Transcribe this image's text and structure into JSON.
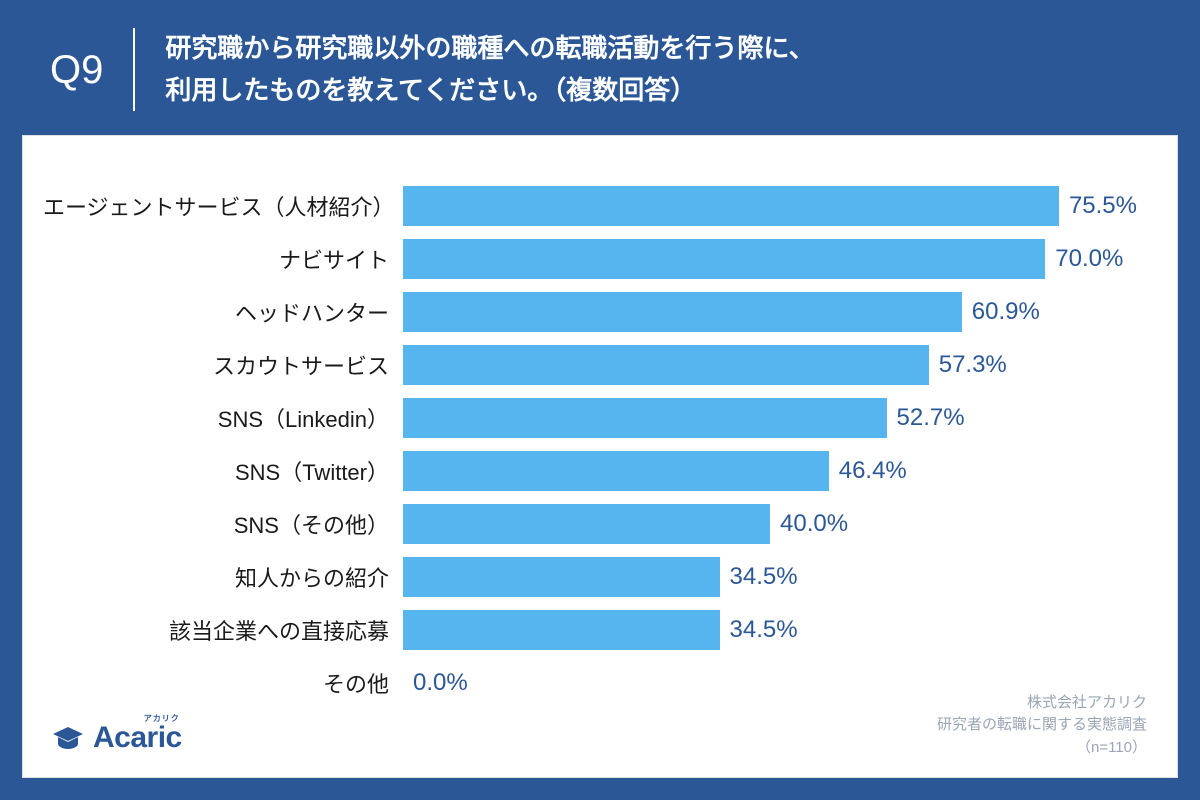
{
  "header": {
    "q_label": "Q9",
    "question": "研究職から研究職以外の職種への転職活動を行う際に、\n利用したものを教えてください。（複数回答）",
    "bg_color": "#2b5797",
    "text_color": "#ffffff"
  },
  "chart": {
    "type": "bar-horizontal",
    "x_max": 80,
    "bar_color": "#56b4ef",
    "value_color": "#2b5797",
    "label_color": "#1a1a1a",
    "label_fontsize": 22,
    "value_fontsize": 24,
    "bg_color": "#ffffff",
    "items": [
      {
        "label": "エージェントサービス（人材紹介）",
        "value": 75.5,
        "display": "75.5%"
      },
      {
        "label": "ナビサイト",
        "value": 70.0,
        "display": "70.0%"
      },
      {
        "label": "ヘッドハンター",
        "value": 60.9,
        "display": "60.9%"
      },
      {
        "label": "スカウトサービス",
        "value": 57.3,
        "display": "57.3%"
      },
      {
        "label": "SNS（Linkedin）",
        "value": 52.7,
        "display": "52.7%"
      },
      {
        "label": "SNS（Twitter）",
        "value": 46.4,
        "display": "46.4%"
      },
      {
        "label": "SNS（その他）",
        "value": 40.0,
        "display": "40.0%"
      },
      {
        "label": "知人からの紹介",
        "value": 34.5,
        "display": "34.5%"
      },
      {
        "label": "該当企業への直接応募",
        "value": 34.5,
        "display": "34.5%"
      },
      {
        "label": "その他",
        "value": 0.0,
        "display": "0.0%"
      }
    ]
  },
  "logo": {
    "text": "Acaric",
    "ruby": "アカリク",
    "color": "#2b5797",
    "icon_color": "#2b5797"
  },
  "footer": {
    "text": "株式会社アカリク\n研究者の転職に関する実態調査\n（n=110）",
    "color": "#9aa5b5"
  }
}
